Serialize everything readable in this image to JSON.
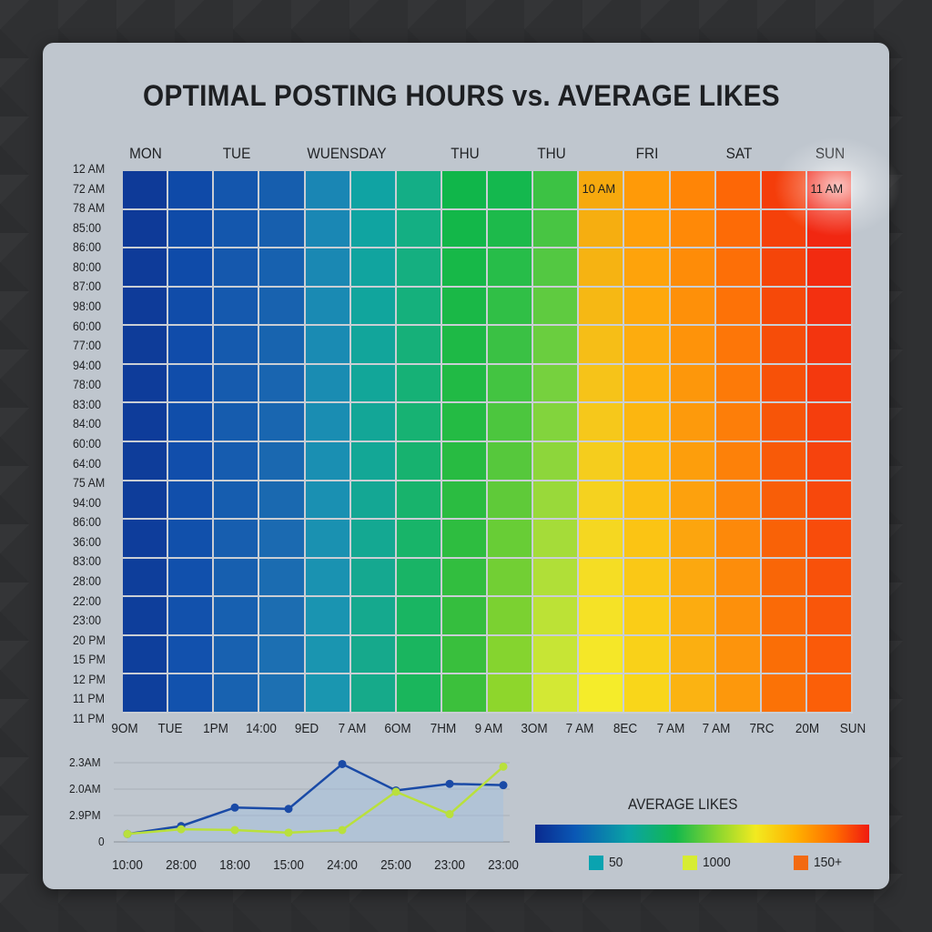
{
  "title": "OPTIMAL POSTING HOURS vs. AVERAGE LIKES",
  "chart_data": [
    {
      "type": "heatmap",
      "title": "OPTIMAL POSTING HOURS vs. AVERAGE LIKES",
      "day_labels": [
        {
          "label": "MON",
          "col": 0.5
        },
        {
          "label": "TUE",
          "col": 2.5
        },
        {
          "label": "WUENSDAY",
          "col": 4.9
        },
        {
          "label": "THU",
          "col": 7.5
        },
        {
          "label": "THU",
          "col": 9.4
        },
        {
          "label": "FRI",
          "col": 11.5
        },
        {
          "label": "SAT",
          "col": 13.5
        },
        {
          "label": "SUN",
          "col": 15.5
        }
      ],
      "hour_labels": [
        "12 AM",
        "72 AM",
        "78 AM",
        "85:00",
        "86:00",
        "80:00",
        "87:00",
        "98:00",
        "60:00",
        "77:00",
        "94:00",
        "78:00",
        "83:00",
        "84:00",
        "60:00",
        "64:00",
        "75 AM",
        "94:00",
        "86:00",
        "36:00",
        "83:00",
        "28:00",
        "22:00",
        "23:00",
        "20 PM",
        "15 PM",
        "12 PM",
        "11 PM",
        "11 PM"
      ],
      "bottom_labels": [
        "9OM",
        "TUE",
        "1PM",
        "14:00",
        "9ED",
        "7 AM",
        "6OM",
        "7HM",
        "9 AM",
        "3OM",
        "7 AM",
        "8EC",
        "7 AM",
        "7 AM",
        "7RC",
        "20M",
        "SUN"
      ],
      "columns": 16,
      "rows": 14,
      "highlights": [
        {
          "label": "10 AM",
          "col": 10
        },
        {
          "label": "11 AM",
          "col": 15
        }
      ],
      "column_colors": [
        [
          "#0e3a98",
          "#0e3f9c"
        ],
        [
          "#0f4aa8",
          "#1252ad"
        ],
        [
          "#1456ad",
          "#1862b0"
        ],
        [
          "#165eae",
          "#1d70b2"
        ],
        [
          "#1a86b4",
          "#1a96b0"
        ],
        [
          "#10a3a3",
          "#16aa8a"
        ],
        [
          "#14ae86",
          "#1ab65c"
        ],
        [
          "#10b64a",
          "#3cc03c"
        ],
        [
          "#14b84e",
          "#8ed62c"
        ],
        [
          "#3cc244",
          "#d3e834"
        ],
        [
          "#f6a90e",
          "#f5ec2a"
        ],
        [
          "#ff9a08",
          "#f9d61a"
        ],
        [
          "#ff8506",
          "#fbb312"
        ],
        [
          "#fd6706",
          "#fd980c"
        ],
        [
          "#f43d0a",
          "#fb7206"
        ],
        [
          "#f02212",
          "#fb5f08"
        ]
      ]
    },
    {
      "type": "line",
      "x": [
        "10:00",
        "28:00",
        "18:00",
        "15:00",
        "24:00",
        "25:00",
        "23:00",
        "23:00"
      ],
      "y_tick_labels": [
        "2.3AM",
        "2.0AM",
        "2.9PM",
        "0"
      ],
      "ylim": [
        0,
        3
      ],
      "series": [
        {
          "color": "#1a4aa6",
          "values": [
            0.3,
            0.6,
            1.3,
            1.25,
            2.95,
            1.95,
            2.2,
            2.15
          ]
        },
        {
          "color": "#b9e03c",
          "values": [
            0.3,
            0.48,
            0.45,
            0.35,
            0.45,
            1.9,
            1.05,
            2.85
          ]
        }
      ],
      "grid": true
    }
  ],
  "legend": {
    "title": "AVERAGE LIKES",
    "items": [
      {
        "label": "50",
        "color": "#0aa3b0"
      },
      {
        "label": "1000",
        "color": "#d7ec32"
      },
      {
        "label": "150+",
        "color": "#f26a12"
      }
    ]
  }
}
